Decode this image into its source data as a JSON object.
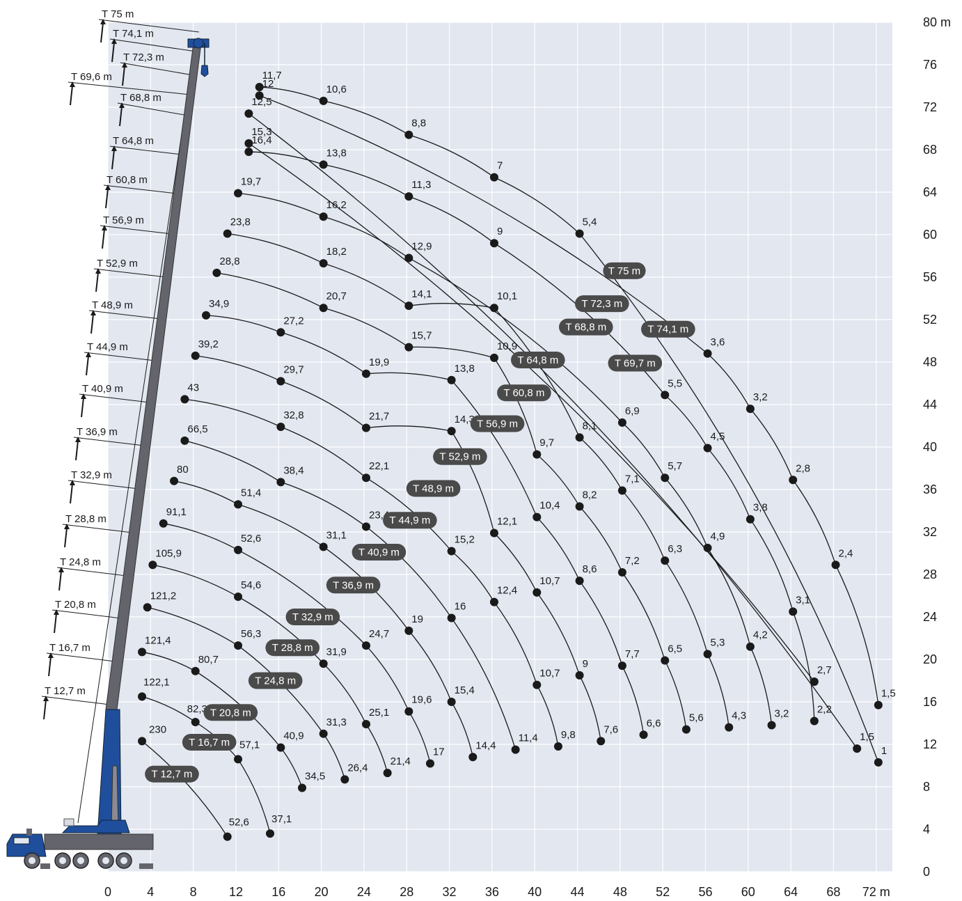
{
  "chart_data": {
    "type": "line",
    "title": "",
    "xlabel": "",
    "ylabel": "",
    "x_unit": "m",
    "y_unit": "m",
    "xlim": [
      0,
      73.5
    ],
    "ylim": [
      0,
      80
    ],
    "x_ticks": [
      "0",
      "4",
      "8",
      "12",
      "16",
      "20",
      "24",
      "28",
      "32",
      "36",
      "40",
      "44",
      "48",
      "52",
      "56",
      "60",
      "64",
      "68",
      "72 m"
    ],
    "y_ticks": [
      "0",
      "4",
      "8",
      "12",
      "16",
      "20",
      "24",
      "28",
      "32",
      "36",
      "40",
      "44",
      "48",
      "52",
      "56",
      "60",
      "64",
      "68",
      "72",
      "76",
      "80 m"
    ],
    "grid": true,
    "boom_lengths": [
      "T 75 m",
      "T 74,1 m",
      "T 72,3 m",
      "T 69,6 m",
      "T 68,8 m",
      "T 64,8 m",
      "T 60,8 m",
      "T 56,9 m",
      "T 52,9 m",
      "T 48,9 m",
      "T 44,9 m",
      "T 40,9 m",
      "T 36,9 m",
      "T 32,9 m",
      "T 28,8 m",
      "T 24,8 m",
      "T 20,8 m",
      "T 16,7 m",
      "T 12,7 m"
    ],
    "series": [
      {
        "name": "T 12,7 m",
        "points": [
          {
            "x": 3.2,
            "y": 12.3,
            "label": "230"
          },
          {
            "x": 11.2,
            "y": 3.3,
            "label": "52,6"
          }
        ]
      },
      {
        "name": "T 16,7 m",
        "points": [
          {
            "x": 3.2,
            "y": 16.5,
            "label": "122,1"
          },
          {
            "x": 8.2,
            "y": 14.1,
            "label": "82,3"
          },
          {
            "x": 12.2,
            "y": 10.6,
            "label": "57,1"
          },
          {
            "x": 15.2,
            "y": 3.6,
            "label": "37,1"
          }
        ]
      },
      {
        "name": "T 20,8 m",
        "points": [
          {
            "x": 3.2,
            "y": 20.7,
            "label": "121,4"
          },
          {
            "x": 8.2,
            "y": 18.9,
            "label": "80,7"
          },
          {
            "x": 16.2,
            "y": 11.7,
            "label": "40,9"
          },
          {
            "x": 18.2,
            "y": 7.9,
            "label": "34,5"
          }
        ]
      },
      {
        "name": "T 24,8 m",
        "points": [
          {
            "x": 3.7,
            "y": 24.9,
            "label": "121,2"
          },
          {
            "x": 12.2,
            "y": 21.3,
            "label": "56,3"
          },
          {
            "x": 20.2,
            "y": 13,
            "label": "31,3"
          },
          {
            "x": 22.2,
            "y": 8.7,
            "label": "26,4"
          }
        ]
      },
      {
        "name": "T 28,8 m",
        "points": [
          {
            "x": 4.2,
            "y": 28.9,
            "label": "105,9"
          },
          {
            "x": 12.2,
            "y": 25.9,
            "label": "54,6"
          },
          {
            "x": 20.2,
            "y": 19.6,
            "label": "31,9"
          },
          {
            "x": 24.2,
            "y": 13.9,
            "label": "25,1"
          },
          {
            "x": 26.2,
            "y": 9.3,
            "label": "21,4"
          }
        ]
      },
      {
        "name": "T 32,9 m",
        "points": [
          {
            "x": 5.2,
            "y": 32.8,
            "label": "91,1"
          },
          {
            "x": 12.2,
            "y": 30.3,
            "label": "52,6"
          },
          {
            "x": 24.2,
            "y": 21.3,
            "label": "24,7"
          },
          {
            "x": 28.2,
            "y": 15.1,
            "label": "19,6"
          },
          {
            "x": 30.2,
            "y": 10.2,
            "label": "17"
          }
        ]
      },
      {
        "name": "T 36,9 m",
        "points": [
          {
            "x": 6.2,
            "y": 36.8,
            "label": "80"
          },
          {
            "x": 12.2,
            "y": 34.6,
            "label": "51,4"
          },
          {
            "x": 20.2,
            "y": 30.6,
            "label": "31,1"
          },
          {
            "x": 28.2,
            "y": 22.7,
            "label": "19"
          },
          {
            "x": 32.2,
            "y": 16,
            "label": "15,4"
          },
          {
            "x": 34.2,
            "y": 10.8,
            "label": "14,4"
          }
        ]
      },
      {
        "name": "T 40,9 m",
        "points": [
          {
            "x": 7.2,
            "y": 40.6,
            "label": "66,5"
          },
          {
            "x": 16.2,
            "y": 36.7,
            "label": "38,4"
          },
          {
            "x": 24.2,
            "y": 32.5,
            "label": "23,4"
          },
          {
            "x": 32.2,
            "y": 23.9,
            "label": "16"
          },
          {
            "x": 38.2,
            "y": 11.5,
            "label": "11,4"
          }
        ]
      },
      {
        "name": "T 44,9 m",
        "points": [
          {
            "x": 7.2,
            "y": 44.5,
            "label": "43"
          },
          {
            "x": 16.2,
            "y": 41.9,
            "label": "32,8"
          },
          {
            "x": 24.2,
            "y": 37.1,
            "label": "22,1"
          },
          {
            "x": 32.2,
            "y": 30.2,
            "label": "15,2"
          },
          {
            "x": 36.2,
            "y": 25.4,
            "label": "12,4"
          },
          {
            "x": 40.2,
            "y": 17.6,
            "label": "10,7"
          },
          {
            "x": 42.2,
            "y": 11.8,
            "label": "9,8"
          }
        ]
      },
      {
        "name": "T 48,9 m",
        "points": [
          {
            "x": 8.2,
            "y": 48.6,
            "label": "39,2"
          },
          {
            "x": 16.2,
            "y": 46.2,
            "label": "29,7"
          },
          {
            "x": 24.2,
            "y": 41.8,
            "label": "21,7"
          },
          {
            "x": 32.2,
            "y": 41.5,
            "label": "14,3"
          },
          {
            "x": 36.2,
            "y": 31.9,
            "label": "12,1"
          },
          {
            "x": 40.2,
            "y": 26.3,
            "label": "10,7"
          },
          {
            "x": 44.2,
            "y": 18.5,
            "label": "9"
          },
          {
            "x": 46.2,
            "y": 12.3,
            "label": "7,6"
          }
        ]
      },
      {
        "name": "T 52,9 m",
        "points": [
          {
            "x": 9.2,
            "y": 52.4,
            "label": "34,9"
          },
          {
            "x": 16.2,
            "y": 50.8,
            "label": "27,2"
          },
          {
            "x": 24.2,
            "y": 46.9,
            "label": "19,9"
          },
          {
            "x": 32.2,
            "y": 46.3,
            "label": "13,8"
          },
          {
            "x": 40.2,
            "y": 33.4,
            "label": "10,4"
          },
          {
            "x": 44.2,
            "y": 27.4,
            "label": "8,6"
          },
          {
            "x": 48.2,
            "y": 19.4,
            "label": "7,7"
          },
          {
            "x": 50.2,
            "y": 12.9,
            "label": "6,6"
          }
        ]
      },
      {
        "name": "T 56,9 m",
        "points": [
          {
            "x": 10.2,
            "y": 56.4,
            "label": "28,8"
          },
          {
            "x": 20.2,
            "y": 53.1,
            "label": "20,7"
          },
          {
            "x": 28.2,
            "y": 49.4,
            "label": "15,7"
          },
          {
            "x": 36.2,
            "y": 48.4,
            "label": "10,9"
          },
          {
            "x": 40.2,
            "y": 39.3,
            "label": "9,7"
          },
          {
            "x": 44.2,
            "y": 34.4,
            "label": "8,2"
          },
          {
            "x": 48.2,
            "y": 28.2,
            "label": "7,2"
          },
          {
            "x": 52.2,
            "y": 19.9,
            "label": "6,5"
          },
          {
            "x": 54.2,
            "y": 13.4,
            "label": "5,6"
          }
        ]
      },
      {
        "name": "T 60,8 m",
        "points": [
          {
            "x": 11.2,
            "y": 60.1,
            "label": "23,8"
          },
          {
            "x": 20.2,
            "y": 57.3,
            "label": "18,2"
          },
          {
            "x": 28.2,
            "y": 53.3,
            "label": "14,1"
          },
          {
            "x": 36.2,
            "y": 53.1,
            "label": "10,1"
          },
          {
            "x": 44.2,
            "y": 40.9,
            "label": "8,1"
          },
          {
            "x": 48.2,
            "y": 35.9,
            "label": "7,1"
          },
          {
            "x": 52.2,
            "y": 29.3,
            "label": "6,3"
          },
          {
            "x": 56.2,
            "y": 20.5,
            "label": "5,3"
          },
          {
            "x": 58.2,
            "y": 13.6,
            "label": "4,3"
          }
        ]
      },
      {
        "name": "T 64,8 m",
        "points": [
          {
            "x": 12.2,
            "y": 63.9,
            "label": "19,7"
          },
          {
            "x": 20.2,
            "y": 61.7,
            "label": "16,2"
          },
          {
            "x": 28.2,
            "y": 57.8,
            "label": "12,9"
          },
          {
            "x": 48.2,
            "y": 42.3,
            "label": "6,9"
          },
          {
            "x": 52.2,
            "y": 37.1,
            "label": "5,7"
          },
          {
            "x": 56.2,
            "y": 30.5,
            "label": "4,9"
          },
          {
            "x": 60.2,
            "y": 21.2,
            "label": "4,2"
          },
          {
            "x": 62.2,
            "y": 13.8,
            "label": "3,2"
          }
        ]
      },
      {
        "name": "T 68,8 m",
        "points": [
          {
            "x": 13.2,
            "y": 67.8,
            "label": "16,4"
          },
          {
            "x": 20.2,
            "y": 66.6,
            "label": "13,8"
          },
          {
            "x": 28.2,
            "y": 63.6,
            "label": "11,3"
          },
          {
            "x": 36.2,
            "y": 59.2,
            "label": "9"
          },
          {
            "x": 52.2,
            "y": 44.9,
            "label": "5,5"
          },
          {
            "x": 56.2,
            "y": 39.9,
            "label": "4,5"
          },
          {
            "x": 60.2,
            "y": 33.2,
            "label": "3,8"
          },
          {
            "x": 64.2,
            "y": 24.5,
            "label": "3,1"
          },
          {
            "x": 66.2,
            "y": 14.2,
            "label": "2,2"
          }
        ]
      },
      {
        "name": "T 69,6 m",
        "points": [
          {
            "x": 13.2,
            "y": 68.6,
            "label": "15,3"
          },
          {
            "x": 66.2,
            "y": 17.9,
            "label": "2,7"
          }
        ]
      },
      {
        "name": "T 72,3 m",
        "points": [
          {
            "x": 13.2,
            "y": 71.4,
            "label": "12,5"
          },
          {
            "x": 70.2,
            "y": 11.6,
            "label": "1,5"
          }
        ]
      },
      {
        "name": "T 74,1 m",
        "points": [
          {
            "x": 14.2,
            "y": 73.1,
            "label": "12"
          },
          {
            "x": 56.2,
            "y": 48.8,
            "label": "3,6"
          },
          {
            "x": 60.2,
            "y": 43.6,
            "label": "3,2"
          },
          {
            "x": 64.2,
            "y": 36.9,
            "label": "2,8"
          },
          {
            "x": 68.2,
            "y": 28.9,
            "label": "2,4"
          },
          {
            "x": 72.2,
            "y": 15.7,
            "label": "1,5"
          }
        ]
      },
      {
        "name": "T 75 m",
        "points": [
          {
            "x": 14.2,
            "y": 73.9,
            "label": "11,7"
          },
          {
            "x": 20.2,
            "y": 72.6,
            "label": "10,6"
          },
          {
            "x": 28.2,
            "y": 69.4,
            "label": "8,8"
          },
          {
            "x": 36.2,
            "y": 65.4,
            "label": "7"
          },
          {
            "x": 44.2,
            "y": 60.1,
            "label": "5,4"
          },
          {
            "x": 72.2,
            "y": 10.3,
            "label": "1"
          }
        ]
      }
    ],
    "colors": {
      "grid_bg": "#e2e7f0",
      "grid_line": "#ffffff",
      "curve": "#1a1a1a",
      "point": "#1a1a1a",
      "pill": "#4a4a4a",
      "boom_grey": "#64646c",
      "crane_blue": "#1f4f9c"
    }
  }
}
